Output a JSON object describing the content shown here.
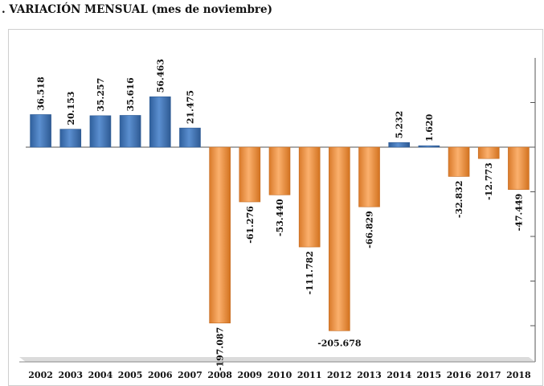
{
  "title": ". VARIACIÓN MENSUAL (mes de noviembre)",
  "colors": {
    "positive": "#4a7dbe",
    "negative": "#f39c50",
    "positive_dark": "#2f5c95",
    "negative_dark": "#c46a1f"
  },
  "chart_data": {
    "type": "bar",
    "title": ". VARIACIÓN MENSUAL (mes de noviembre)",
    "xlabel": "",
    "ylabel": "",
    "ylim": [
      -235,
      100
    ],
    "grid": false,
    "categories": [
      "2002",
      "2003",
      "2004",
      "2005",
      "2006",
      "2007",
      "2008",
      "2009",
      "2010",
      "2011",
      "2012",
      "2013",
      "2014",
      "2015",
      "2016",
      "2017",
      "2018"
    ],
    "values": [
      36.518,
      20.153,
      35.257,
      35.616,
      56.463,
      21.475,
      -197.087,
      -61.276,
      -53.44,
      -111.782,
      -205.678,
      -66.829,
      5.232,
      1.62,
      -32.832,
      -12.773,
      -47.449
    ],
    "labels": [
      "36.518",
      "20.153",
      "35.257",
      "35.616",
      "56.463",
      "21.475",
      "-197.087",
      "-61.276",
      "-53.440",
      "-111.782",
      "-205.678",
      "-66.829",
      "5.232",
      "1.620",
      "-32.832",
      "-12.773",
      "-47.449"
    ]
  }
}
